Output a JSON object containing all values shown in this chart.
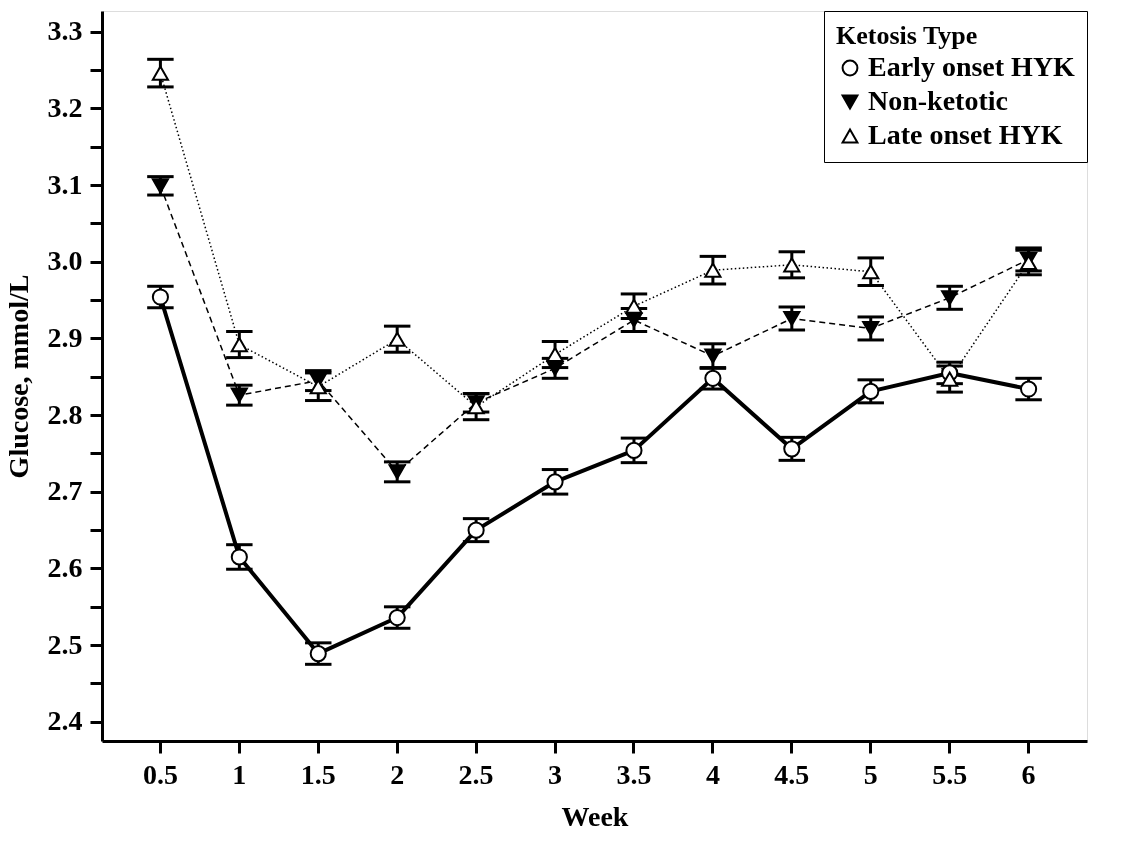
{
  "chart_data": {
    "type": "line",
    "xlabel": "Week",
    "ylabel": "Glucose, mmol/L",
    "legend_title": "Ketosis Type",
    "legend": "top right",
    "grid": false,
    "categories": [
      "0.5",
      "1",
      "1.5",
      "2",
      "2.5",
      "3",
      "3.5",
      "4",
      "4.5",
      "5",
      "5.5",
      "6"
    ],
    "ylim": [
      2.375,
      3.327
    ],
    "yticks": [
      2.4,
      {
        "value": 2.45,
        "label": null
      },
      2.5,
      {
        "value": 2.55,
        "label": null
      },
      2.6,
      {
        "value": 2.65,
        "label": null
      },
      2.7,
      {
        "value": 2.75,
        "label": null
      },
      2.8,
      {
        "value": 2.85,
        "label": null
      },
      {
        "value": 2.9,
        "label": "2.9"
      },
      {
        "value": 2.95,
        "label": null
      },
      {
        "value": 3.0,
        "label": "3.0"
      },
      {
        "value": 3.05,
        "label": null
      },
      3.1,
      {
        "value": 3.15,
        "label": null
      },
      3.2,
      {
        "value": 3.25,
        "label": null
      },
      3.3
    ],
    "series": [
      {
        "name": "Early onset HYK",
        "color": "#000000",
        "marker": "circle",
        "line_style": "solid",
        "values": [
          2.954,
          2.615,
          2.489,
          2.536,
          2.65,
          2.713,
          2.754,
          2.848,
          2.756,
          2.831,
          2.855,
          2.834
        ],
        "errors": [
          0.014,
          0.016,
          0.014,
          0.014,
          0.015,
          0.016,
          0.016,
          0.014,
          0.015,
          0.015,
          0.014,
          0.014
        ]
      },
      {
        "name": "Non-ketotic",
        "color": "#000000",
        "marker": "triangle-down",
        "line_style": "dashed",
        "values": [
          3.099,
          2.826,
          2.845,
          2.726,
          2.816,
          2.861,
          2.924,
          2.877,
          2.926,
          2.913,
          2.953,
          3.003
        ],
        "errors": [
          0.012,
          0.013,
          0.013,
          0.013,
          0.012,
          0.013,
          0.015,
          0.016,
          0.015,
          0.015,
          0.015,
          0.015
        ]
      },
      {
        "name": "Late onset HYK",
        "color": "#000000",
        "marker": "triangle",
        "line_style": "dotted",
        "values": [
          3.246,
          2.892,
          2.837,
          2.899,
          2.811,
          2.879,
          2.942,
          2.989,
          2.996,
          2.987,
          2.847,
          2.999
        ],
        "errors": [
          0.018,
          0.017,
          0.018,
          0.017,
          0.017,
          0.017,
          0.016,
          0.018,
          0.017,
          0.018,
          0.017,
          0.016
        ]
      }
    ]
  }
}
